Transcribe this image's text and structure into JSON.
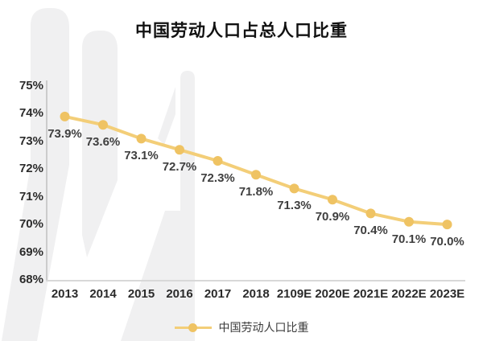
{
  "title": "中国劳动人口占总人口比重",
  "chart_data": {
    "type": "line",
    "categories": [
      "2013",
      "2014",
      "2015",
      "2016",
      "2017",
      "2018",
      "2109E",
      "2020E",
      "2021E",
      "2022E",
      "2023E"
    ],
    "series": [
      {
        "name": "中国劳动人口比重",
        "values": [
          73.9,
          73.6,
          73.1,
          72.7,
          72.3,
          71.8,
          71.3,
          70.9,
          70.4,
          70.1,
          70.0
        ]
      }
    ],
    "point_labels": [
      "73.9%",
      "73.6%",
      "73.1%",
      "72.7%",
      "72.3%",
      "71.8%",
      "71.3%",
      "70.9%",
      "70.4%",
      "70.1%",
      "70.0%"
    ],
    "yticks": [
      "75%",
      "74%",
      "73%",
      "72%",
      "71%",
      "70%",
      "69%",
      "68%"
    ],
    "ytick_values": [
      75,
      74,
      73,
      72,
      71,
      70,
      69,
      68
    ],
    "ylim": [
      68,
      75
    ],
    "grid": false,
    "legend": {
      "label": "中国劳动人口比重",
      "position": "bottom"
    },
    "line_color": "#F3CE78",
    "marker_color": "#EFC363",
    "watermark_color": "#F0F0F1"
  }
}
